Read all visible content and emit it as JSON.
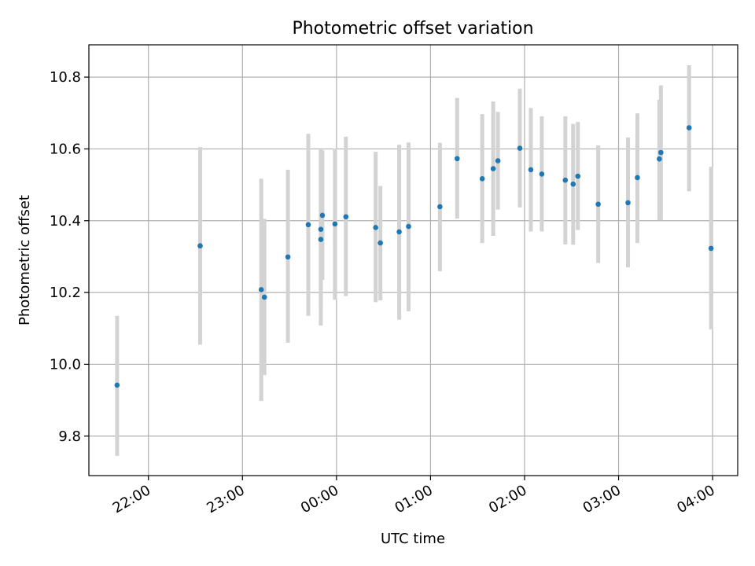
{
  "chart_data": {
    "type": "scatter",
    "title": "Photometric offset variation",
    "xlabel": "UTC time",
    "ylabel": "Photometric offset",
    "x_ticks": [
      "22:00",
      "23:00",
      "00:00",
      "01:00",
      "02:00",
      "03:00",
      "04:00"
    ],
    "y_ticks": [
      "9.8",
      "10.0",
      "10.2",
      "10.4",
      "10.6",
      "10.8"
    ],
    "xlim": [
      "21:22",
      "04:16"
    ],
    "ylim": [
      9.69,
      10.89
    ],
    "grid": true,
    "point_color": "#1f77b4",
    "errorbar_color": "#d3d3d3",
    "points": [
      {
        "x": "21:40",
        "y": 9.942,
        "ylow": 9.745,
        "yhigh": 10.135
      },
      {
        "x": "22:33",
        "y": 10.33,
        "ylow": 10.055,
        "yhigh": 10.605
      },
      {
        "x": "23:12",
        "y": 10.208,
        "ylow": 9.898,
        "yhigh": 10.517
      },
      {
        "x": "23:14",
        "y": 10.187,
        "ylow": 9.97,
        "yhigh": 10.405
      },
      {
        "x": "23:29",
        "y": 10.299,
        "ylow": 10.06,
        "yhigh": 10.542
      },
      {
        "x": "23:42",
        "y": 10.389,
        "ylow": 10.135,
        "yhigh": 10.642
      },
      {
        "x": "23:50",
        "y": 10.348,
        "ylow": 10.108,
        "yhigh": 10.598
      },
      {
        "x": "23:50",
        "y": 10.376,
        "ylow": 10.155,
        "yhigh": 10.597
      },
      {
        "x": "23:51",
        "y": 10.415,
        "ylow": 10.235,
        "yhigh": 10.596
      },
      {
        "x": "23:59",
        "y": 10.391,
        "ylow": 10.18,
        "yhigh": 10.601
      },
      {
        "x": "00:06",
        "y": 10.411,
        "ylow": 10.19,
        "yhigh": 10.634
      },
      {
        "x": "00:25",
        "y": 10.381,
        "ylow": 10.173,
        "yhigh": 10.592
      },
      {
        "x": "00:28",
        "y": 10.338,
        "ylow": 10.178,
        "yhigh": 10.497
      },
      {
        "x": "00:40",
        "y": 10.369,
        "ylow": 10.124,
        "yhigh": 10.612
      },
      {
        "x": "00:46",
        "y": 10.384,
        "ylow": 10.148,
        "yhigh": 10.618
      },
      {
        "x": "01:06",
        "y": 10.439,
        "ylow": 10.259,
        "yhigh": 10.617
      },
      {
        "x": "01:17",
        "y": 10.573,
        "ylow": 10.406,
        "yhigh": 10.742
      },
      {
        "x": "01:33",
        "y": 10.517,
        "ylow": 10.338,
        "yhigh": 10.697
      },
      {
        "x": "01:40",
        "y": 10.545,
        "ylow": 10.358,
        "yhigh": 10.732
      },
      {
        "x": "01:43",
        "y": 10.567,
        "ylow": 10.431,
        "yhigh": 10.703
      },
      {
        "x": "01:57",
        "y": 10.602,
        "ylow": 10.437,
        "yhigh": 10.768
      },
      {
        "x": "02:04",
        "y": 10.542,
        "ylow": 10.37,
        "yhigh": 10.714
      },
      {
        "x": "02:11",
        "y": 10.53,
        "ylow": 10.37,
        "yhigh": 10.691
      },
      {
        "x": "02:26",
        "y": 10.513,
        "ylow": 10.334,
        "yhigh": 10.691
      },
      {
        "x": "02:31",
        "y": 10.502,
        "ylow": 10.333,
        "yhigh": 10.67
      },
      {
        "x": "02:34",
        "y": 10.524,
        "ylow": 10.374,
        "yhigh": 10.675
      },
      {
        "x": "02:47",
        "y": 10.446,
        "ylow": 10.282,
        "yhigh": 10.61
      },
      {
        "x": "03:06",
        "y": 10.45,
        "ylow": 10.27,
        "yhigh": 10.632
      },
      {
        "x": "03:12",
        "y": 10.52,
        "ylow": 10.338,
        "yhigh": 10.699
      },
      {
        "x": "03:26",
        "y": 10.572,
        "ylow": 10.402,
        "yhigh": 10.737
      },
      {
        "x": "03:27",
        "y": 10.59,
        "ylow": 10.402,
        "yhigh": 10.777
      },
      {
        "x": "03:45",
        "y": 10.659,
        "ylow": 10.482,
        "yhigh": 10.833
      },
      {
        "x": "03:59",
        "y": 10.323,
        "ylow": 10.097,
        "yhigh": 10.55
      }
    ]
  }
}
